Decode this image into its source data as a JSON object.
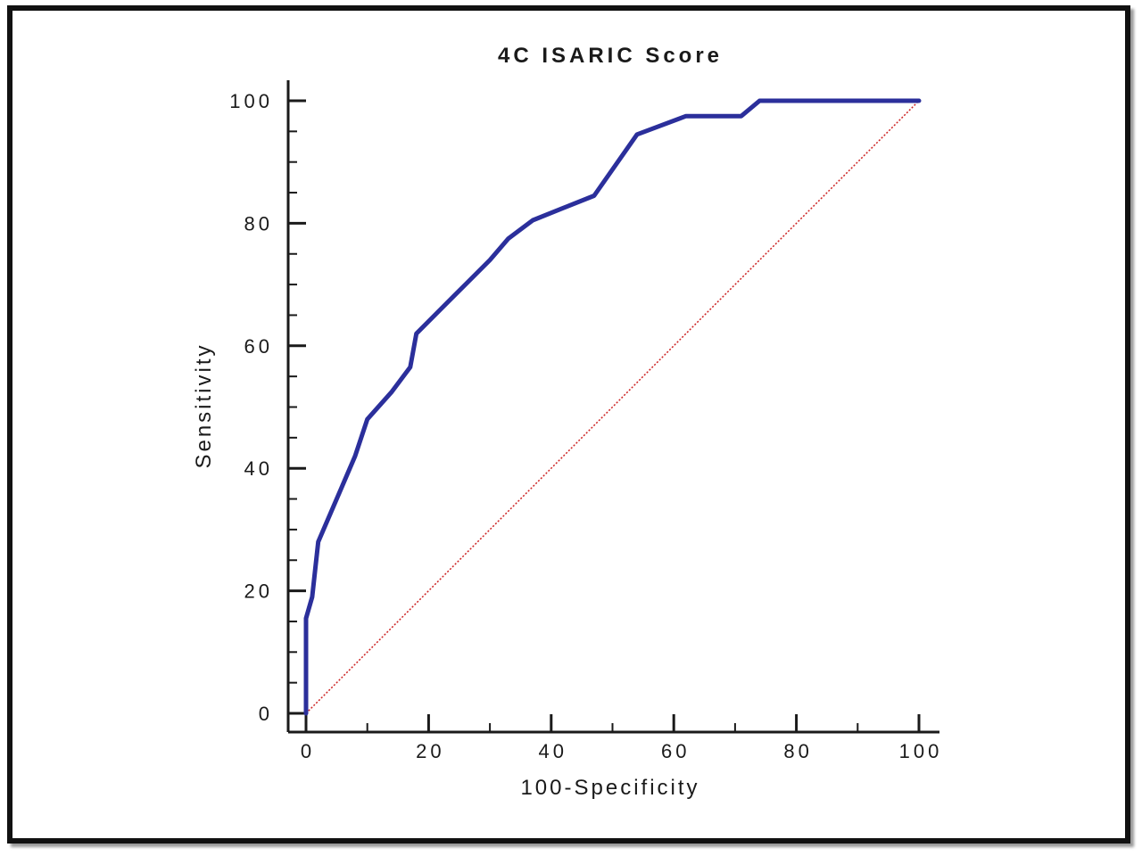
{
  "chart_data": {
    "type": "line",
    "title": "4C ISARIC Score",
    "xlabel": "100-Specificity",
    "ylabel": "Sensitivity",
    "xlim": [
      0,
      100
    ],
    "ylim": [
      0,
      100
    ],
    "x_ticks": [
      "0",
      "20",
      "40",
      "60",
      "80",
      "100"
    ],
    "y_ticks": [
      "0",
      "20",
      "40",
      "60",
      "80",
      "100"
    ],
    "grid": false,
    "series": [
      {
        "color": "#2b2f9b",
        "style": "solid",
        "x": [
          0,
          0,
          1,
          2,
          5,
          8,
          10,
          14,
          17,
          18,
          22,
          26,
          30,
          33,
          37,
          42,
          47,
          54,
          62,
          71,
          74,
          100
        ],
        "y": [
          0,
          15.5,
          19,
          28,
          35,
          42,
          48,
          52.5,
          56.5,
          62,
          66,
          70,
          74,
          77.5,
          80.5,
          82.5,
          84.5,
          94.5,
          97.5,
          97.5,
          100,
          100
        ]
      },
      {
        "color": "#cc2222",
        "style": "dotted",
        "x": [
          0,
          100
        ],
        "y": [
          0,
          100
        ]
      }
    ]
  }
}
